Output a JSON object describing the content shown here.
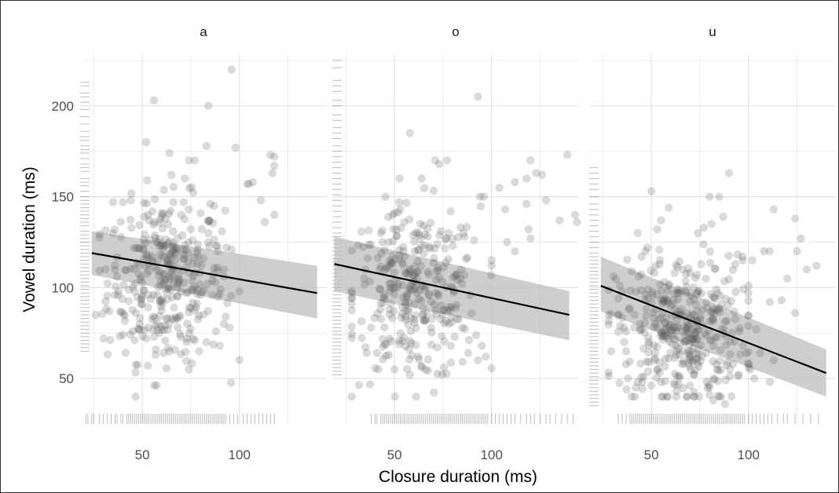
{
  "chart_data": {
    "type": "scatter",
    "xlabel": "Closure duration (ms)",
    "ylabel": "Vowel duration (ms)",
    "xlim": [
      18,
      145
    ],
    "ylim": [
      25,
      228
    ],
    "x_ticks": [
      50,
      100
    ],
    "y_ticks": [
      50,
      100,
      150,
      200
    ],
    "grid": true,
    "legend": "none",
    "colors": {
      "points": "#555555",
      "line": "#000000",
      "band": "#bdbdbd",
      "grid": "#e3e3e3",
      "rug": "#222222"
    },
    "panels": [
      {
        "title": "a",
        "fit": {
          "x": [
            24,
            140
          ],
          "y": [
            119,
            97
          ]
        },
        "band": {
          "lower": [
            107,
            83
          ],
          "upper": [
            131,
            112
          ]
        },
        "point_cloud": {
          "n": 330,
          "x_center": 62,
          "x_sd": 15,
          "y_center": 104,
          "y_sd": 22
        },
        "points": [
          [
            96,
            220
          ],
          [
            56,
            203
          ],
          [
            84,
            200
          ],
          [
            52,
            180
          ],
          [
            98,
            177
          ],
          [
            83,
            178
          ],
          [
            64,
            174
          ],
          [
            77,
            170
          ],
          [
            74,
            170
          ],
          [
            105,
            157
          ],
          [
            104,
            157
          ],
          [
            107,
            158
          ],
          [
            116,
            173
          ],
          [
            118,
            172
          ],
          [
            118,
            167
          ],
          [
            117,
            163
          ],
          [
            111,
            148
          ],
          [
            113,
            136
          ],
          [
            118,
            140
          ],
          [
            85,
            146
          ],
          [
            87,
            145
          ],
          [
            91,
            131
          ],
          [
            84,
            130
          ],
          [
            76,
            126
          ],
          [
            40,
            147
          ],
          [
            44,
            148
          ],
          [
            35,
            147
          ],
          [
            51,
            139
          ],
          [
            53,
            140
          ],
          [
            60,
            141
          ],
          [
            62,
            138
          ],
          [
            70,
            140
          ],
          [
            74,
            143
          ],
          [
            80,
            141
          ],
          [
            72,
            160
          ],
          [
            65,
            162
          ],
          [
            88,
            123
          ],
          [
            89,
            120
          ],
          [
            96,
            121
          ],
          [
            92,
            110
          ],
          [
            92,
            106
          ],
          [
            93,
            84
          ],
          [
            92,
            80
          ],
          [
            95,
            78
          ],
          [
            86,
            96
          ],
          [
            90,
            68
          ],
          [
            83,
            70
          ],
          [
            77,
            71
          ],
          [
            73,
            72
          ],
          [
            74,
            55
          ],
          [
            61,
            64
          ],
          [
            57,
            66
          ],
          [
            64,
            65
          ],
          [
            52,
            72
          ],
          [
            46,
            71
          ],
          [
            40,
            74
          ],
          [
            30,
            72
          ],
          [
            26,
            85
          ],
          [
            33,
            87
          ],
          [
            36,
            96
          ],
          [
            31,
            110
          ],
          [
            37,
            106
          ]
        ]
      },
      {
        "title": "o",
        "fit": {
          "x": [
            19,
            140
          ],
          "y": [
            113,
            85
          ]
        },
        "band": {
          "lower": [
            98,
            71
          ],
          "upper": [
            128,
            98
          ]
        },
        "point_cloud": {
          "n": 300,
          "x_center": 60,
          "x_sd": 17,
          "y_center": 96,
          "y_sd": 24
        },
        "points": [
          [
            93,
            205
          ],
          [
            58,
            185
          ],
          [
            64,
            160
          ],
          [
            71,
            170
          ],
          [
            73,
            168
          ],
          [
            77,
            170
          ],
          [
            139,
            173
          ],
          [
            120,
            170
          ],
          [
            123,
            163
          ],
          [
            118,
            160
          ],
          [
            112,
            158
          ],
          [
            126,
            162
          ],
          [
            96,
            150
          ],
          [
            94,
            150
          ],
          [
            104,
            155
          ],
          [
            107,
            143
          ],
          [
            118,
            146
          ],
          [
            128,
            148
          ],
          [
            143,
            140
          ],
          [
            144,
            136
          ],
          [
            135,
            137
          ],
          [
            119,
            132
          ],
          [
            120,
            127
          ],
          [
            108,
            125
          ],
          [
            112,
            120
          ],
          [
            91,
            126
          ],
          [
            86,
            128
          ],
          [
            50,
            141
          ],
          [
            53,
            143
          ],
          [
            49,
            140
          ],
          [
            55,
            136
          ],
          [
            61,
            130
          ],
          [
            74,
            131
          ],
          [
            78,
            130
          ],
          [
            80,
            123
          ],
          [
            84,
            105
          ],
          [
            86,
            107
          ],
          [
            95,
            68
          ],
          [
            97,
            62
          ],
          [
            93,
            60
          ],
          [
            88,
            64
          ],
          [
            81,
            73
          ],
          [
            79,
            68
          ],
          [
            64,
            57
          ],
          [
            66,
            55
          ],
          [
            50,
            55
          ],
          [
            58,
            52
          ],
          [
            41,
            64
          ],
          [
            38,
            78
          ],
          [
            35,
            110
          ],
          [
            43,
            130
          ],
          [
            47,
            125
          ]
        ]
      },
      {
        "title": "u",
        "fit": {
          "x": [
            24,
            140
          ],
          "y": [
            101,
            53
          ]
        },
        "band": {
          "lower": [
            87,
            40
          ],
          "upper": [
            117,
            66
          ]
        },
        "point_cloud": {
          "n": 380,
          "x_center": 66,
          "x_sd": 17,
          "y_center": 77,
          "y_sd": 20
        },
        "points": [
          [
            90,
            163
          ],
          [
            50,
            153
          ],
          [
            85,
            150
          ],
          [
            80,
            150
          ],
          [
            87,
            139
          ],
          [
            59,
            144
          ],
          [
            53,
            132
          ],
          [
            77,
            133
          ],
          [
            74,
            130
          ],
          [
            81,
            135
          ],
          [
            113,
            143
          ],
          [
            124,
            138
          ],
          [
            127,
            127
          ],
          [
            111,
            120
          ],
          [
            108,
            120
          ],
          [
            102,
            115
          ],
          [
            97,
            117
          ],
          [
            97,
            115
          ],
          [
            125,
            120
          ],
          [
            130,
            110
          ],
          [
            135,
            112
          ],
          [
            120,
            105
          ],
          [
            117,
            93
          ],
          [
            111,
            92
          ],
          [
            104,
            77
          ],
          [
            124,
            86
          ],
          [
            113,
            60
          ],
          [
            106,
            64
          ],
          [
            111,
            48
          ],
          [
            101,
            55
          ],
          [
            103,
            50
          ],
          [
            95,
            52
          ],
          [
            88,
            36
          ],
          [
            82,
            38
          ],
          [
            85,
            40
          ],
          [
            80,
            41
          ],
          [
            63,
            43
          ],
          [
            55,
            48
          ],
          [
            53,
            55
          ],
          [
            50,
            46
          ],
          [
            46,
            51
          ],
          [
            38,
            50
          ],
          [
            37,
            65
          ],
          [
            36,
            70
          ],
          [
            41,
            78
          ],
          [
            33,
            94
          ],
          [
            35,
            98
          ],
          [
            40,
            109
          ],
          [
            45,
            117
          ],
          [
            43,
            130
          ],
          [
            47,
            120
          ],
          [
            48,
            122
          ],
          [
            55,
            137
          ],
          [
            62,
            108
          ],
          [
            66,
            110
          ]
        ]
      }
    ],
    "rug_y": {
      "a": [
        213,
        211,
        207,
        205,
        202,
        198,
        194,
        190,
        186,
        183,
        181,
        178,
        176,
        174,
        171,
        168,
        166,
        164,
        160,
        158,
        156,
        153,
        150,
        148,
        146,
        144,
        142,
        140,
        138,
        136,
        134,
        131,
        129,
        127,
        125,
        123,
        121,
        119,
        117,
        115,
        113,
        111,
        109,
        107,
        105,
        103,
        101,
        99,
        97,
        95,
        93,
        91,
        89,
        87,
        85,
        83,
        81,
        79,
        77,
        75,
        73,
        71,
        69,
        67,
        65
      ],
      "o": [
        225,
        221,
        214,
        211,
        208,
        203,
        200,
        195,
        192,
        188,
        185,
        182,
        178,
        175,
        172,
        169,
        166,
        163,
        160,
        157,
        154,
        151,
        148,
        145,
        142,
        139,
        136,
        133,
        130,
        128,
        126,
        124,
        122,
        120,
        118,
        116,
        114,
        112,
        110,
        108,
        106,
        104,
        102,
        100,
        98,
        96,
        94,
        92,
        90,
        88,
        86,
        84,
        82,
        80,
        78,
        76,
        74,
        72,
        70,
        68,
        66,
        64,
        62,
        60,
        58,
        56,
        54,
        52
      ],
      "u": [
        166,
        163,
        160,
        157,
        154,
        150,
        146,
        143,
        140,
        137,
        134,
        131,
        128,
        125,
        122,
        119,
        117,
        115,
        113,
        111,
        109,
        107,
        105,
        103,
        101,
        99,
        97,
        95,
        93,
        91,
        89,
        87,
        85,
        83,
        81,
        79,
        77,
        75,
        73,
        71,
        69,
        67,
        65,
        63,
        61,
        59,
        57,
        55,
        53,
        51,
        49,
        47,
        45,
        43,
        41,
        39,
        37,
        35
      ]
    },
    "rug_x": {
      "a": [
        21,
        22,
        24,
        25,
        28,
        30,
        32,
        34,
        36,
        37,
        39,
        40,
        42,
        43,
        44,
        45,
        46,
        47,
        48,
        49,
        50,
        51,
        52,
        53,
        54,
        55,
        56,
        57,
        58,
        59,
        60,
        61,
        62,
        63,
        64,
        65,
        66,
        67,
        68,
        69,
        70,
        71,
        72,
        73,
        74,
        75,
        76,
        77,
        78,
        79,
        80,
        81,
        82,
        83,
        84,
        85,
        86,
        87,
        88,
        89,
        90,
        91,
        92,
        93,
        95,
        97,
        99,
        102,
        104,
        106,
        108,
        110,
        112,
        114,
        116,
        118
      ],
      "o": [
        38,
        40,
        41,
        43,
        44,
        45,
        46,
        47,
        48,
        49,
        50,
        51,
        52,
        53,
        54,
        55,
        56,
        57,
        58,
        59,
        60,
        61,
        62,
        63,
        64,
        65,
        66,
        67,
        68,
        69,
        70,
        71,
        72,
        73,
        74,
        75,
        76,
        77,
        78,
        79,
        80,
        81,
        82,
        83,
        84,
        85,
        86,
        87,
        88,
        89,
        90,
        91,
        92,
        93,
        94,
        95,
        96,
        97,
        98,
        100,
        102,
        104,
        106,
        108,
        110,
        112,
        115,
        118,
        120,
        122,
        125,
        128,
        130,
        133,
        136,
        139,
        142
      ],
      "u": [
        33,
        35,
        37,
        39,
        40,
        41,
        42,
        43,
        44,
        45,
        46,
        47,
        48,
        49,
        50,
        51,
        52,
        53,
        54,
        55,
        56,
        57,
        58,
        59,
        60,
        61,
        62,
        63,
        64,
        65,
        66,
        67,
        68,
        69,
        70,
        71,
        72,
        73,
        74,
        75,
        76,
        77,
        78,
        79,
        80,
        81,
        82,
        83,
        84,
        85,
        86,
        87,
        88,
        89,
        90,
        91,
        92,
        93,
        94,
        95,
        96,
        97,
        98,
        100,
        102,
        104,
        106,
        108,
        110,
        112,
        115,
        118,
        120,
        124,
        128,
        132,
        136
      ]
    }
  }
}
